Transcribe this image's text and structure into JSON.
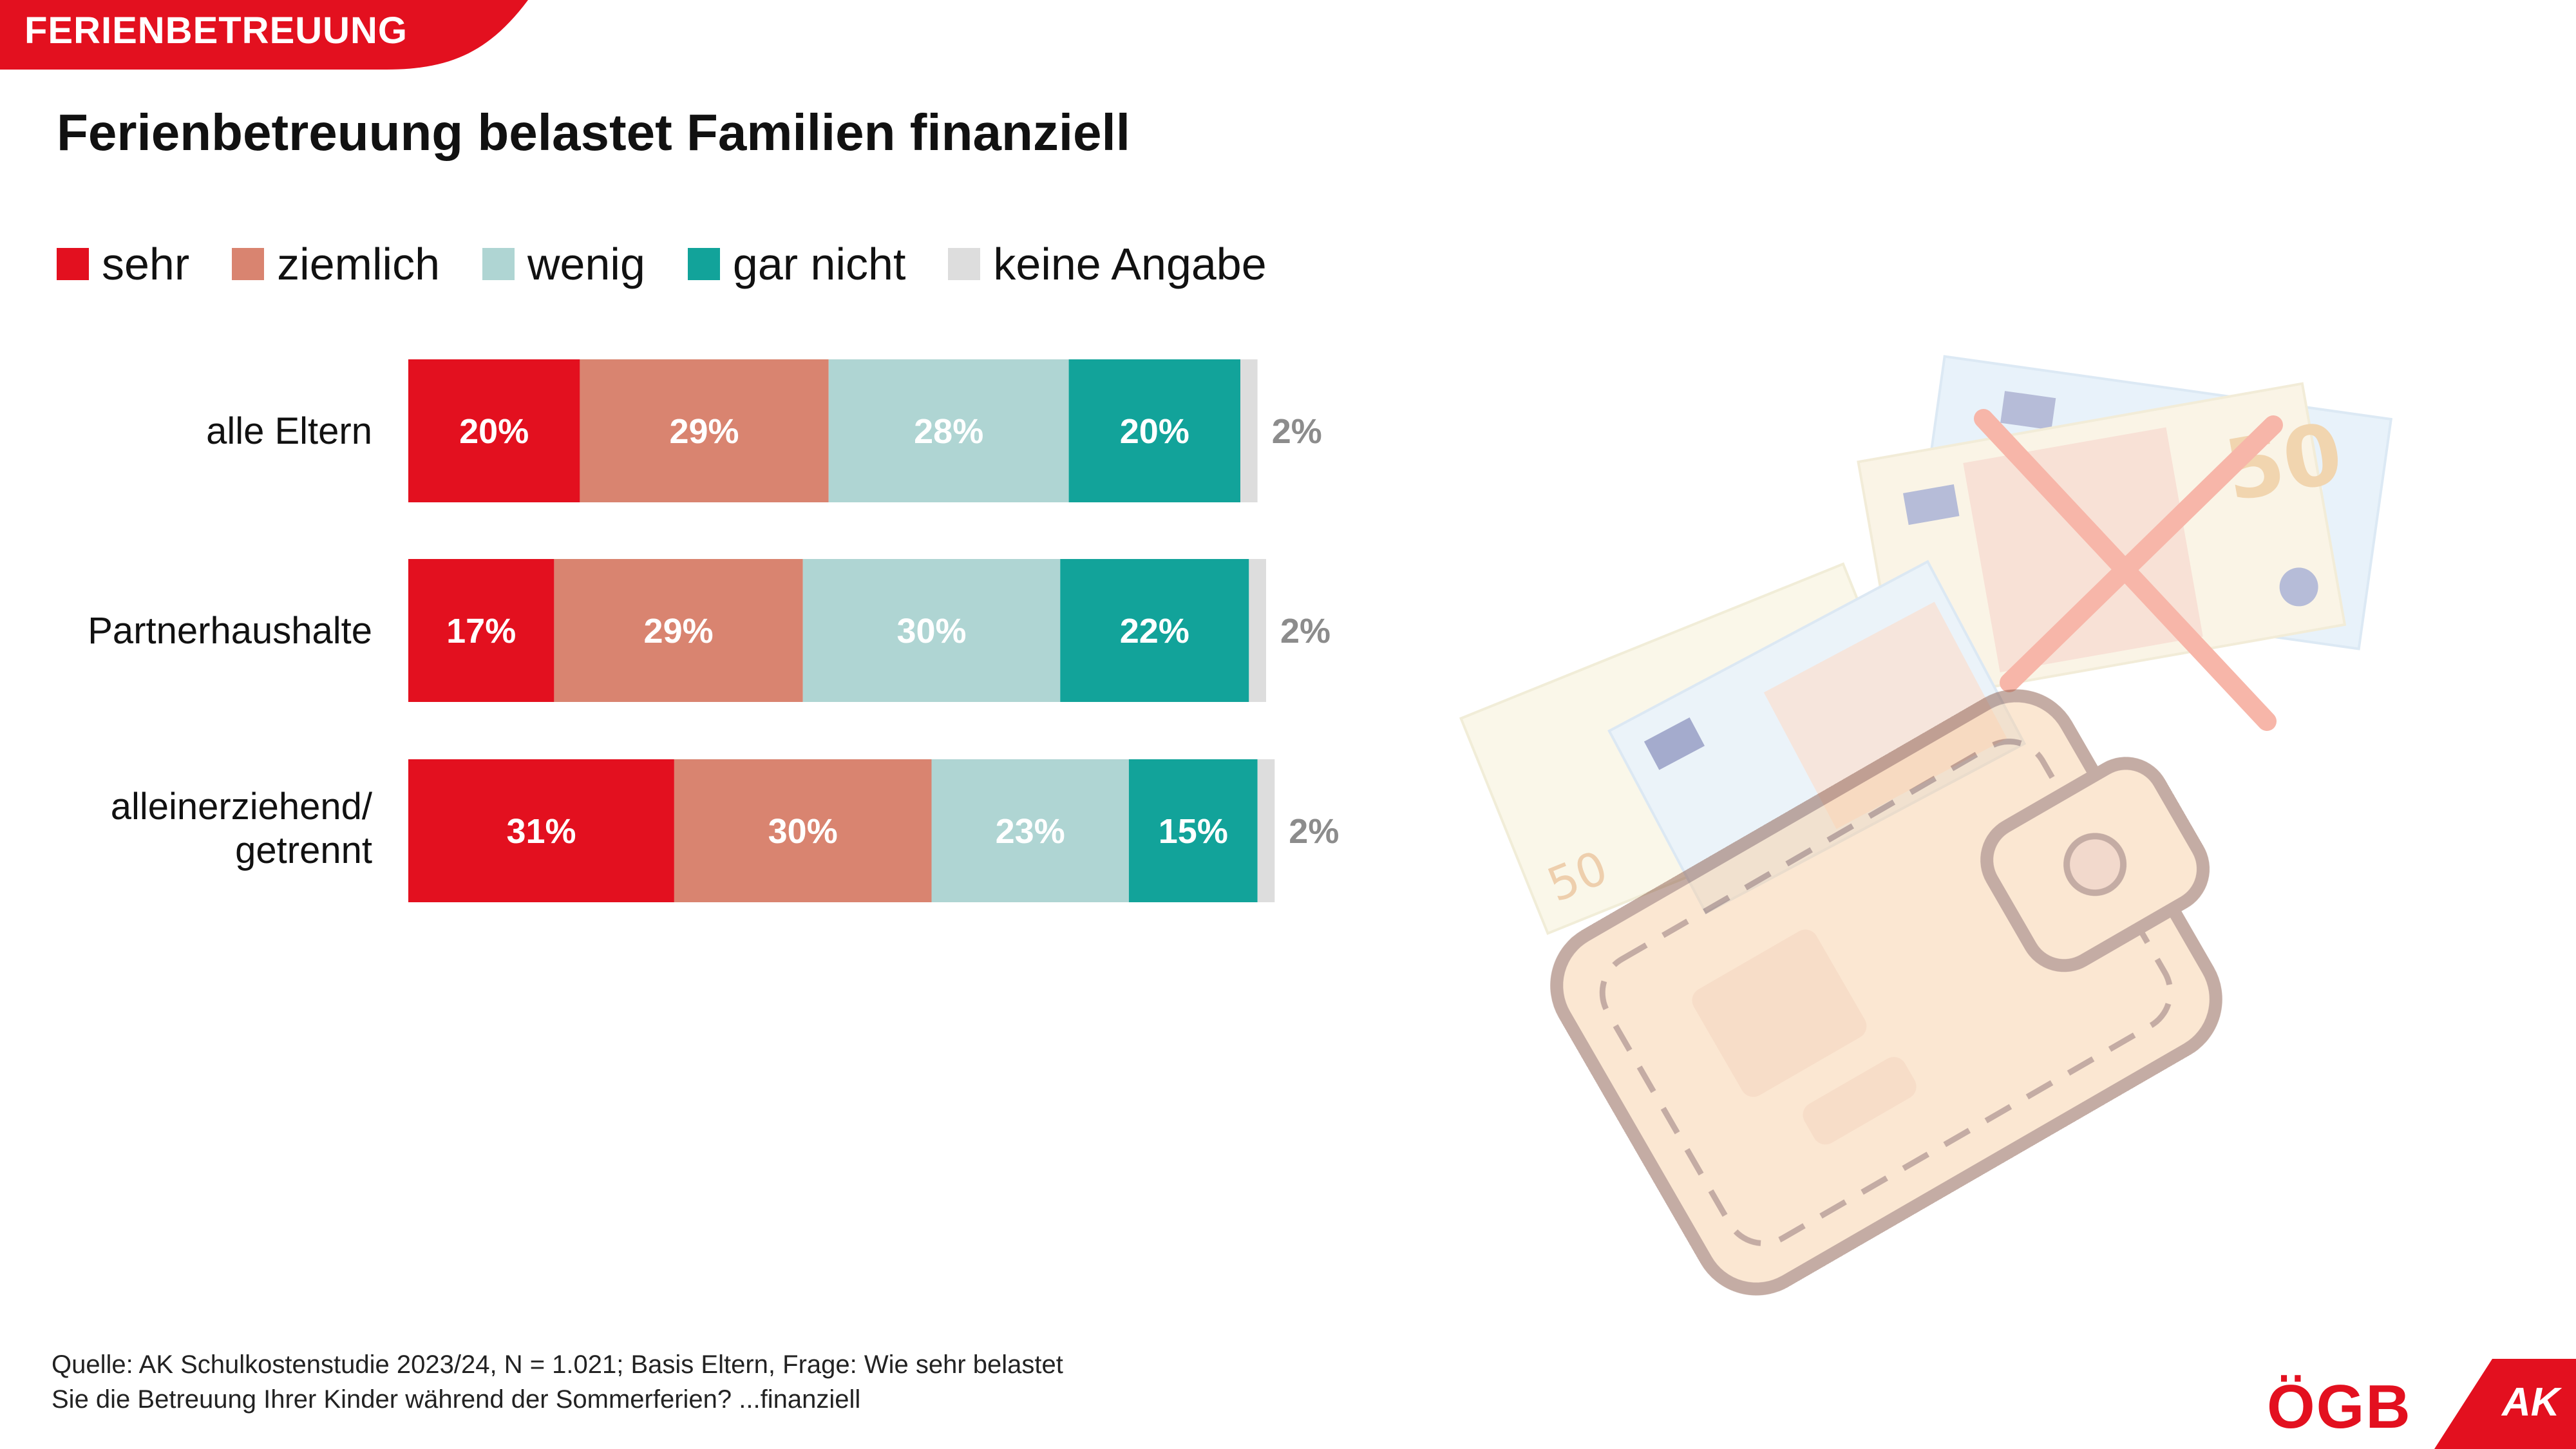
{
  "header": {
    "tag": "FERIENBETREUUNG"
  },
  "footer": {
    "line1": "Quelle: AK Schulkostenstudie 2023/24, N = 1.021; Basis Eltern, Frage: Wie sehr belastet",
    "line2": "Sie die Betreuung Ihrer Kinder während der Sommerferien? ...finanziell"
  },
  "logos": {
    "ogb": "ÖGB",
    "ak": "AK"
  },
  "colors": {
    "accent": "#e3101f",
    "sehr": "#e3101f",
    "ziemlich": "#d98470",
    "wenig": "#afd5d3",
    "gar_nicht": "#12a39a",
    "keine_angabe": "#dddddd"
  },
  "chart_data": {
    "type": "bar",
    "orientation": "horizontal",
    "stacked": true,
    "title": "Ferienbetreuung belastet Familien finanziell",
    "categories": [
      "alle Eltern",
      "Partnerhaushalte",
      "alleinerziehend/ getrennt"
    ],
    "series": [
      {
        "name": "sehr",
        "values": [
          20,
          17,
          31
        ]
      },
      {
        "name": "ziemlich",
        "values": [
          29,
          29,
          30
        ]
      },
      {
        "name": "wenig",
        "values": [
          28,
          30,
          23
        ]
      },
      {
        "name": "gar nicht",
        "values": [
          20,
          22,
          15
        ]
      },
      {
        "name": "keine Angabe",
        "values": [
          2,
          2,
          2
        ]
      }
    ],
    "unit": "%",
    "xlim": [
      0,
      100
    ],
    "legend": "top-left",
    "grid": false
  }
}
